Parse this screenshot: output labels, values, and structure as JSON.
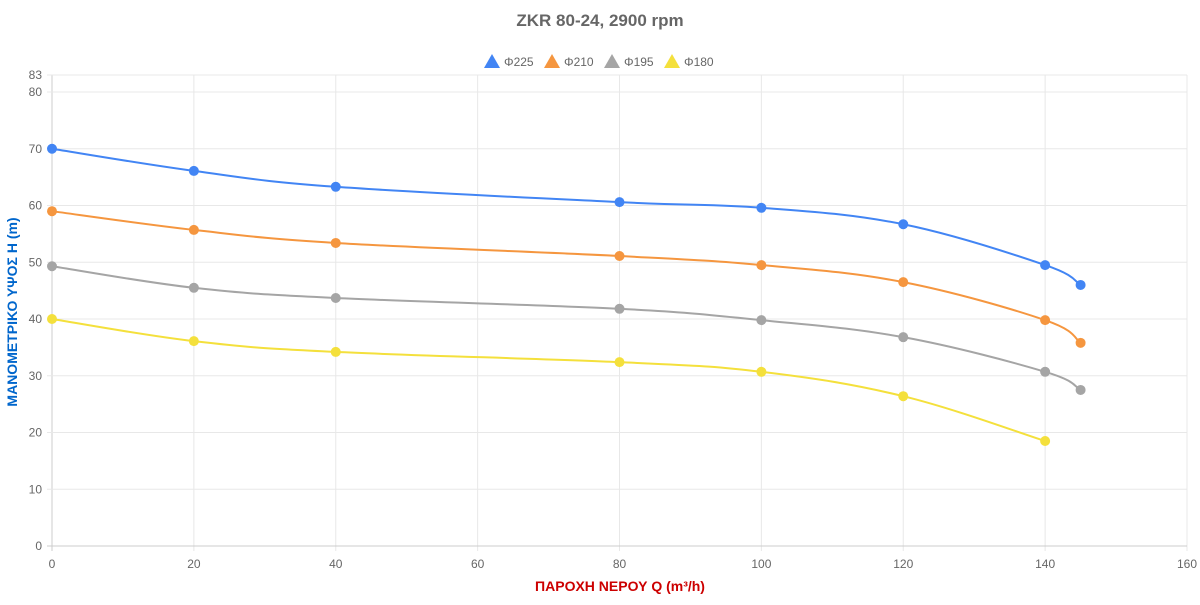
{
  "chart_data": {
    "type": "line",
    "title": "ZKR 80-24, 2900 rpm",
    "xlabel": "ΠΑΡΟΧΗ ΝΕΡΟΥ Q (m³/h)",
    "ylabel": "ΜΑΝΟΜΕΤΡΙΚΟ ΥΨΟΣ H (m)",
    "xlim": [
      0,
      160
    ],
    "ylim": [
      0,
      83
    ],
    "xticks": [
      0,
      20,
      40,
      60,
      80,
      100,
      120,
      140,
      160
    ],
    "yticks": [
      0,
      10,
      20,
      30,
      40,
      50,
      60,
      70,
      80,
      83
    ],
    "grid": true,
    "legend": "top-center",
    "title_color": "#666666",
    "xlabel_color": "#cc0000",
    "ylabel_color": "#0066cc",
    "series": [
      {
        "name": "Φ225",
        "color": "#4285f4",
        "x": [
          0,
          20,
          40,
          80,
          100,
          120,
          140,
          145
        ],
        "y": [
          70,
          66.1,
          63.3,
          60.6,
          59.6,
          56.7,
          49.5,
          46
        ]
      },
      {
        "name": "Φ210",
        "color": "#f5963f",
        "x": [
          0,
          20,
          40,
          80,
          100,
          120,
          140,
          145
        ],
        "y": [
          59,
          55.7,
          53.4,
          51.1,
          49.5,
          46.5,
          39.8,
          35.8
        ]
      },
      {
        "name": "Φ195",
        "color": "#a5a5a5",
        "x": [
          0,
          20,
          40,
          80,
          100,
          120,
          140,
          145
        ],
        "y": [
          49.3,
          45.5,
          43.7,
          41.8,
          39.8,
          36.8,
          30.7,
          27.5
        ]
      },
      {
        "name": "Φ180",
        "color": "#f4e03c",
        "x": [
          0,
          20,
          40,
          80,
          100,
          120,
          140
        ],
        "y": [
          40,
          36.1,
          34.2,
          32.4,
          30.7,
          26.4,
          18.5
        ]
      }
    ]
  }
}
